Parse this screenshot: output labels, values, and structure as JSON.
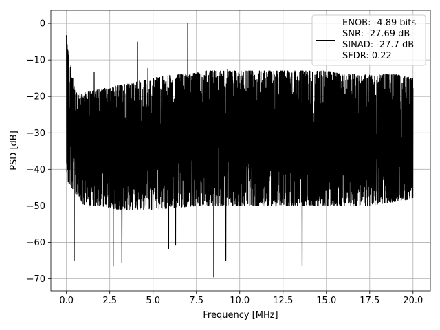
{
  "chart_data": {
    "type": "line",
    "title": "",
    "xlabel": "Frequency [MHz]",
    "ylabel": "PSD [dB]",
    "xlim": [
      -0.9,
      21.0
    ],
    "ylim": [
      -73.3,
      3.6
    ],
    "xticks": [
      0.0,
      2.5,
      5.0,
      7.5,
      10.0,
      12.5,
      15.0,
      17.5,
      20.0
    ],
    "xtick_labels": [
      "0.0",
      "2.5",
      "5.0",
      "7.5",
      "10.0",
      "12.5",
      "15.0",
      "17.5",
      "20.0"
    ],
    "yticks": [
      0,
      -10,
      -20,
      -30,
      -40,
      -50,
      -60,
      -70
    ],
    "ytick_labels": [
      "0",
      "−10",
      "−20",
      "−30",
      "−40",
      "−50",
      "−60",
      "−70"
    ],
    "grid": true,
    "legend_position": "top-right",
    "series": [
      {
        "color": "#000000",
        "x_range": [
          0.0,
          20.0
        ],
        "envelope_max_approx": [
          [
            0.0,
            -3.2
          ],
          [
            0.5,
            -19
          ],
          [
            1.0,
            -19
          ],
          [
            2.0,
            -18
          ],
          [
            3.0,
            -17
          ],
          [
            4.0,
            -16
          ],
          [
            5.0,
            -15
          ],
          [
            6.0,
            -14
          ],
          [
            7.0,
            -14
          ],
          [
            8.0,
            -13
          ],
          [
            9.0,
            -13
          ],
          [
            10.0,
            -13
          ],
          [
            11.0,
            -13
          ],
          [
            12.0,
            -13
          ],
          [
            13.0,
            -13
          ],
          [
            14.0,
            -13
          ],
          [
            15.0,
            -13
          ],
          [
            16.0,
            -14
          ],
          [
            17.0,
            -14
          ],
          [
            18.0,
            -14
          ],
          [
            19.0,
            -14
          ],
          [
            20.0,
            -15
          ]
        ],
        "envelope_min_approx": [
          [
            0.0,
            -43
          ],
          [
            1.0,
            -50
          ],
          [
            2.0,
            -50
          ],
          [
            3.0,
            -51
          ],
          [
            5.0,
            -51
          ],
          [
            7.5,
            -50
          ],
          [
            10.0,
            -50
          ],
          [
            12.5,
            -50
          ],
          [
            15.0,
            -50
          ],
          [
            17.5,
            -50
          ],
          [
            20.0,
            -48
          ]
        ],
        "peaks": [
          {
            "x": 0.0,
            "y": -3.2
          },
          {
            "x": 4.1,
            "y": -5.1
          },
          {
            "x": 7.0,
            "y": 0.0
          },
          {
            "x": 4.7,
            "y": -12.3
          },
          {
            "x": 1.6,
            "y": -13.4
          },
          {
            "x": 9.3,
            "y": -12.6
          }
        ],
        "dips": [
          {
            "x": 0.45,
            "y": -65.0
          },
          {
            "x": 2.7,
            "y": -66.5
          },
          {
            "x": 3.2,
            "y": -65.5
          },
          {
            "x": 8.5,
            "y": -69.5
          },
          {
            "x": 9.2,
            "y": -65.0
          },
          {
            "x": 13.6,
            "y": -66.5
          },
          {
            "x": 5.9,
            "y": -61.7
          },
          {
            "x": 6.3,
            "y": -60.8
          }
        ]
      }
    ],
    "legend_lines": [
      "ENOB: -4.89 bits",
      "SNR: -27.69 dB",
      "SINAD: -27.7 dB",
      "SFDR: 0.22"
    ]
  }
}
